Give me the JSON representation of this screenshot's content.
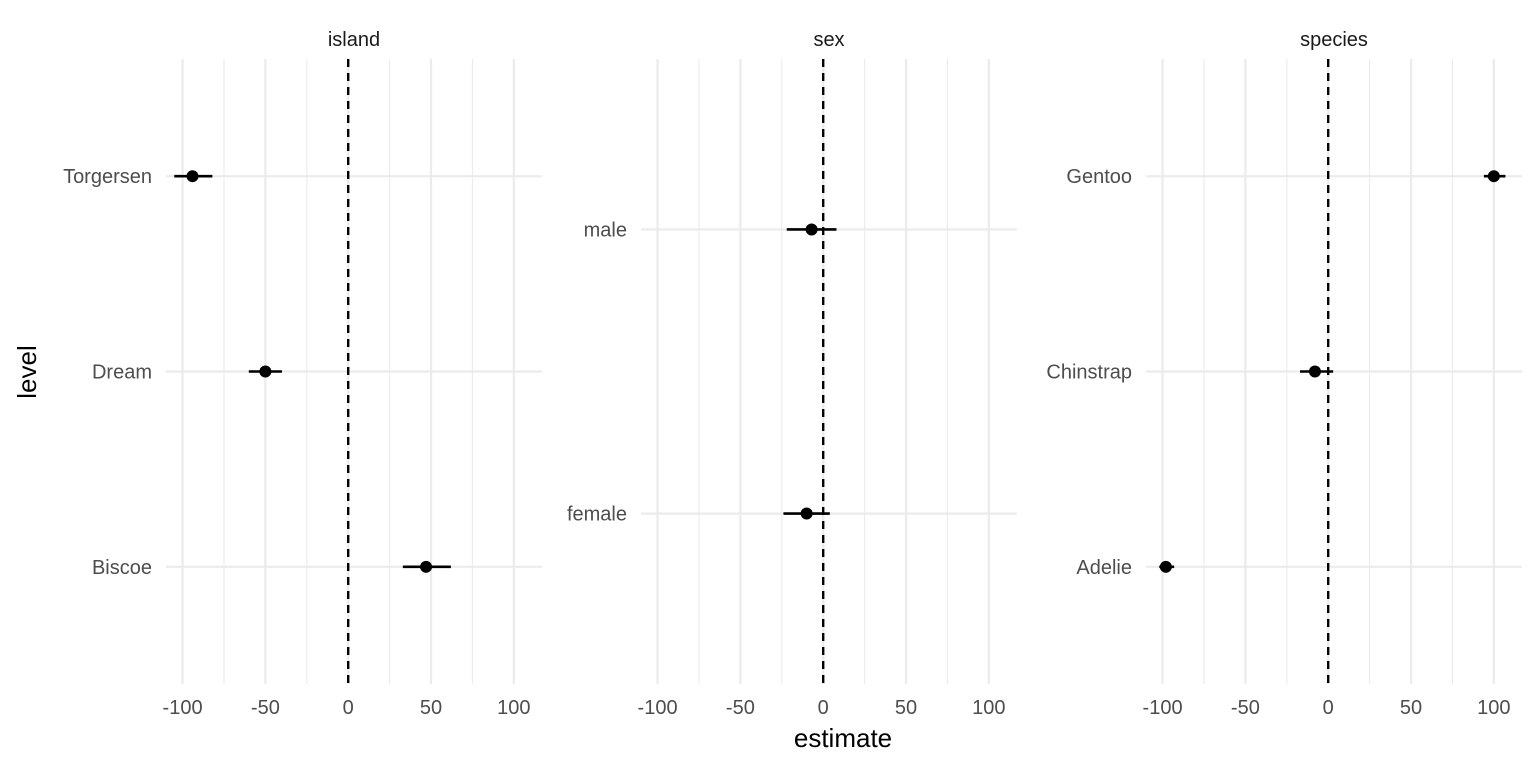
{
  "chart_data": {
    "type": "scatter",
    "subtype": "faceted point-range (coefficient plot)",
    "xlabel": "estimate",
    "ylabel": "level",
    "xlim": [
      -110,
      117
    ],
    "x_ticks": [
      -100,
      -50,
      0,
      50,
      100
    ],
    "x_tick_labels": [
      "-100",
      "-50",
      "0",
      "50",
      "100"
    ],
    "reference_line": {
      "x": 0,
      "style": "dashed"
    },
    "grid": true,
    "legend": "none",
    "colors": {
      "points": "#000000",
      "grid": "#ebebeb",
      "text": "#4d4d4d"
    },
    "facets": [
      {
        "label": "island",
        "levels": [
          "Torgersen",
          "Dream",
          "Biscoe"
        ],
        "points": [
          {
            "level": "Torgersen",
            "estimate": -94,
            "low": -105,
            "high": -82
          },
          {
            "level": "Dream",
            "estimate": -50,
            "low": -60,
            "high": -40
          },
          {
            "level": "Biscoe",
            "estimate": 47,
            "low": 33,
            "high": 62
          }
        ]
      },
      {
        "label": "sex",
        "levels": [
          "male",
          "female"
        ],
        "points": [
          {
            "level": "male",
            "estimate": -7,
            "low": -22,
            "high": 8
          },
          {
            "level": "female",
            "estimate": -10,
            "low": -24,
            "high": 4
          }
        ]
      },
      {
        "label": "species",
        "levels": [
          "Gentoo",
          "Chinstrap",
          "Adelie"
        ],
        "points": [
          {
            "level": "Gentoo",
            "estimate": 100,
            "low": 94,
            "high": 107
          },
          {
            "level": "Chinstrap",
            "estimate": -8,
            "low": -17,
            "high": 3
          },
          {
            "level": "Adelie",
            "estimate": -98,
            "low": -102,
            "high": -93
          }
        ]
      }
    ]
  }
}
